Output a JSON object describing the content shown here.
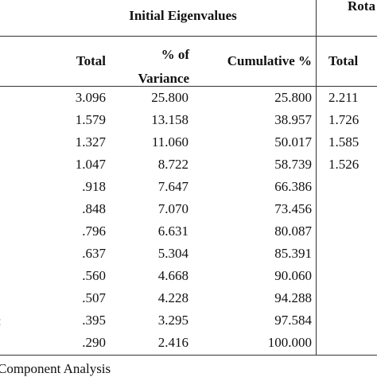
{
  "table": {
    "group_headers": [
      "Initial Eigenvalues",
      "Rota"
    ],
    "column_headers": [
      "Total",
      "% of\nVariance",
      "Cumulative %",
      "Total"
    ],
    "rows": [
      [
        "3.096",
        "25.800",
        "25.800",
        "2.211"
      ],
      [
        "1.579",
        "13.158",
        "38.957",
        "1.726"
      ],
      [
        "1.327",
        "11.060",
        "50.017",
        "1.585"
      ],
      [
        "1.047",
        "8.722",
        "58.739",
        "1.526"
      ],
      [
        ".918",
        "7.647",
        "66.386"
      ],
      [
        ".848",
        "7.070",
        "73.456"
      ],
      [
        ".796",
        "6.631",
        "80.087"
      ],
      [
        ".637",
        "5.304",
        "85.391"
      ],
      [
        ".560",
        "4.668",
        "90.060"
      ],
      [
        ".507",
        "4.228",
        "94.288"
      ],
      [
        ".395",
        "3.295",
        "97.584"
      ],
      [
        ".290",
        "2.416",
        "100.000"
      ]
    ],
    "cut_row_label": ":",
    "footer": "Component Analysis"
  }
}
